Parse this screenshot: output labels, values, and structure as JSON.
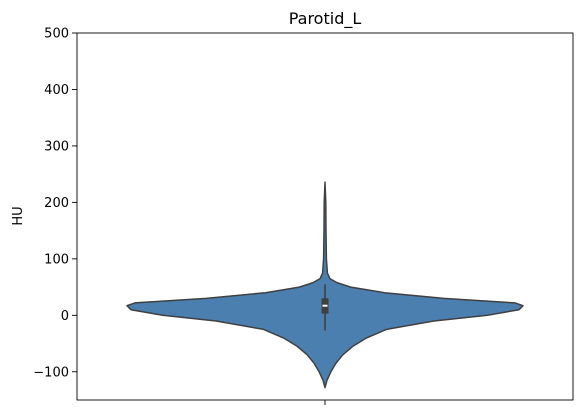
{
  "chart_data": {
    "type": "violin",
    "title": "Parotid_L",
    "xlabel": "",
    "ylabel": "HU",
    "ylim": [
      -150,
      500
    ],
    "yticks": [
      -100,
      0,
      100,
      200,
      300,
      400,
      500
    ],
    "grid": false,
    "colors": {
      "fill": "#4a7fb0",
      "outline": "#404040",
      "box": "#3f3f3f",
      "median": "#ffffff"
    },
    "violin": {
      "density": [
        {
          "y": -128,
          "halfwidth": 0.0
        },
        {
          "y": -115,
          "halfwidth": 0.01
        },
        {
          "y": -100,
          "halfwidth": 0.03
        },
        {
          "y": -85,
          "halfwidth": 0.055
        },
        {
          "y": -70,
          "halfwidth": 0.09
        },
        {
          "y": -55,
          "halfwidth": 0.14
        },
        {
          "y": -40,
          "halfwidth": 0.21
        },
        {
          "y": -25,
          "halfwidth": 0.31
        },
        {
          "y": -10,
          "halfwidth": 0.55
        },
        {
          "y": 0,
          "halfwidth": 0.82
        },
        {
          "y": 10,
          "halfwidth": 0.98
        },
        {
          "y": 17,
          "halfwidth": 1.0
        },
        {
          "y": 22,
          "halfwidth": 0.96
        },
        {
          "y": 30,
          "halfwidth": 0.6
        },
        {
          "y": 40,
          "halfwidth": 0.3
        },
        {
          "y": 50,
          "halfwidth": 0.13
        },
        {
          "y": 58,
          "halfwidth": 0.06
        },
        {
          "y": 65,
          "halfwidth": 0.025
        },
        {
          "y": 75,
          "halfwidth": 0.012
        },
        {
          "y": 100,
          "halfwidth": 0.007
        },
        {
          "y": 150,
          "halfwidth": 0.005
        },
        {
          "y": 200,
          "halfwidth": 0.004
        },
        {
          "y": 236,
          "halfwidth": 0.0
        }
      ],
      "q1": 3,
      "median": 17,
      "q3": 30,
      "whisker_low": -27,
      "whisker_high": 55
    }
  }
}
